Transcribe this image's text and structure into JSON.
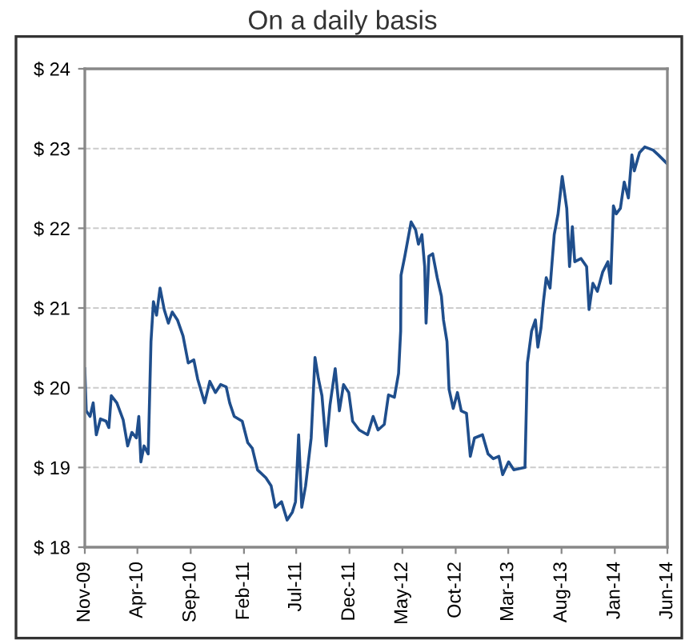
{
  "chart_data": {
    "type": "line",
    "title": "On a daily basis",
    "x": [
      "2009-11-01",
      "2009-11-05",
      "2009-11-16",
      "2009-11-25",
      "2009-12-04",
      "2009-12-16",
      "2010-01-01",
      "2010-01-09",
      "2010-01-16",
      "2010-02-01",
      "2010-02-19",
      "2010-03-04",
      "2010-03-16",
      "2010-03-29",
      "2010-04-05",
      "2010-04-11",
      "2010-04-20",
      "2010-05-02",
      "2010-05-10",
      "2010-05-17",
      "2010-05-26",
      "2010-06-05",
      "2010-06-17",
      "2010-06-29",
      "2010-07-10",
      "2010-07-25",
      "2010-08-10",
      "2010-08-25",
      "2010-09-10",
      "2010-09-21",
      "2010-10-11",
      "2010-10-26",
      "2010-11-11",
      "2010-11-26",
      "2010-12-12",
      "2010-12-22",
      "2011-01-04",
      "2011-01-27",
      "2011-02-12",
      "2011-02-25",
      "2011-03-12",
      "2011-04-05",
      "2011-04-20",
      "2011-05-02",
      "2011-05-20",
      "2011-06-05",
      "2011-06-20",
      "2011-06-29",
      "2011-07-08",
      "2011-07-17",
      "2011-07-28",
      "2011-08-13",
      "2011-08-24",
      "2011-09-03",
      "2011-09-13",
      "2011-09-25",
      "2011-10-06",
      "2011-10-21",
      "2011-11-02",
      "2011-11-14",
      "2011-11-29",
      "2011-12-10",
      "2011-12-29",
      "2012-01-22",
      "2012-02-07",
      "2012-02-21",
      "2012-03-10",
      "2012-03-22",
      "2012-04-08",
      "2012-04-20",
      "2012-04-26",
      "2012-04-27",
      "2012-05-08",
      "2012-05-26",
      "2012-06-08",
      "2012-06-16",
      "2012-06-26",
      "2012-07-04",
      "2012-07-08",
      "2012-07-16",
      "2012-07-27",
      "2012-08-09",
      "2012-08-21",
      "2012-08-27",
      "2012-09-06",
      "2012-09-12",
      "2012-09-24",
      "2012-10-06",
      "2012-10-17",
      "2012-11-01",
      "2012-11-12",
      "2012-11-24",
      "2012-12-17",
      "2013-01-02",
      "2013-01-17",
      "2013-02-02",
      "2013-02-13",
      "2013-03-02",
      "2013-03-17",
      "2013-04-18",
      "2013-04-25",
      "2013-05-07",
      "2013-05-18",
      "2013-05-25",
      "2013-06-03",
      "2013-06-10",
      "2013-06-18",
      "2013-06-29",
      "2013-07-11",
      "2013-07-22",
      "2013-08-03",
      "2013-08-16",
      "2013-08-24",
      "2013-09-01",
      "2013-09-08",
      "2013-09-26",
      "2013-10-12",
      "2013-10-19",
      "2013-10-30",
      "2013-11-12",
      "2013-11-27",
      "2013-12-12",
      "2013-12-20",
      "2013-12-28",
      "2014-01-05",
      "2014-01-17",
      "2014-01-28",
      "2014-02-09",
      "2014-02-19",
      "2014-02-26",
      "2014-03-13",
      "2014-03-28",
      "2014-04-21",
      "2014-05-06",
      "2014-05-29"
    ],
    "series": [
      {
        "color": "#1f4e8c",
        "values": [
          20.24,
          19.71,
          19.64,
          19.81,
          19.41,
          19.61,
          19.58,
          19.5,
          19.9,
          19.81,
          19.6,
          19.27,
          19.44,
          19.37,
          19.64,
          19.07,
          19.27,
          19.17,
          20.58,
          21.08,
          20.91,
          21.25,
          20.98,
          20.81,
          20.95,
          20.85,
          20.65,
          20.31,
          20.35,
          20.11,
          19.81,
          20.08,
          19.94,
          20.04,
          20.01,
          19.81,
          19.64,
          19.58,
          19.31,
          19.24,
          18.97,
          18.87,
          18.77,
          18.5,
          18.57,
          18.34,
          18.44,
          18.57,
          19.41,
          18.5,
          18.77,
          19.37,
          20.38,
          20.11,
          19.9,
          19.27,
          19.78,
          20.24,
          19.71,
          20.04,
          19.94,
          19.58,
          19.47,
          19.41,
          19.64,
          19.47,
          19.54,
          19.91,
          19.88,
          20.18,
          20.71,
          21.41,
          21.65,
          22.08,
          21.98,
          21.8,
          21.92,
          21.52,
          20.81,
          21.65,
          21.68,
          21.38,
          21.15,
          20.85,
          20.58,
          19.98,
          19.74,
          19.94,
          19.71,
          19.68,
          19.14,
          19.37,
          19.41,
          19.17,
          19.11,
          19.14,
          18.91,
          19.07,
          18.97,
          19.0,
          20.31,
          20.71,
          20.85,
          20.51,
          20.75,
          21.08,
          21.38,
          21.25,
          21.92,
          22.18,
          22.65,
          22.25,
          21.52,
          22.02,
          21.58,
          21.62,
          21.52,
          20.98,
          21.31,
          21.21,
          21.45,
          21.58,
          21.31,
          22.28,
          22.18,
          22.25,
          22.58,
          22.38,
          22.92,
          22.72,
          22.95,
          23.02,
          22.98,
          22.92,
          22.82
        ]
      }
    ],
    "xlim": [
      "2009-11-01",
      "2014-06-01"
    ],
    "xticks": [
      {
        "value": "2009-11-01",
        "label": "Nov-09"
      },
      {
        "value": "2010-04-01",
        "label": "Apr-10"
      },
      {
        "value": "2010-09-01",
        "label": "Sep-10"
      },
      {
        "value": "2011-02-01",
        "label": "Feb-11"
      },
      {
        "value": "2011-07-01",
        "label": "Jul-11"
      },
      {
        "value": "2011-12-01",
        "label": "Dec-11"
      },
      {
        "value": "2012-05-01",
        "label": "May-12"
      },
      {
        "value": "2012-10-01",
        "label": "Oct-12"
      },
      {
        "value": "2013-03-01",
        "label": "Mar-13"
      },
      {
        "value": "2013-08-01",
        "label": "Aug-13"
      },
      {
        "value": "2014-01-01",
        "label": "Jan-14"
      },
      {
        "value": "2014-06-01",
        "label": "Jun-14"
      }
    ],
    "ylim": [
      18,
      24
    ],
    "yticks": [
      {
        "value": 18,
        "label": "$ 18"
      },
      {
        "value": 19,
        "label": "$ 19"
      },
      {
        "value": 20,
        "label": "$ 20"
      },
      {
        "value": 21,
        "label": "$ 21"
      },
      {
        "value": 22,
        "label": "$ 22"
      },
      {
        "value": 23,
        "label": "$ 23"
      },
      {
        "value": 24,
        "label": "$ 24"
      }
    ],
    "grid": "y",
    "legend": false,
    "marker": "none",
    "line_style": "solid"
  }
}
